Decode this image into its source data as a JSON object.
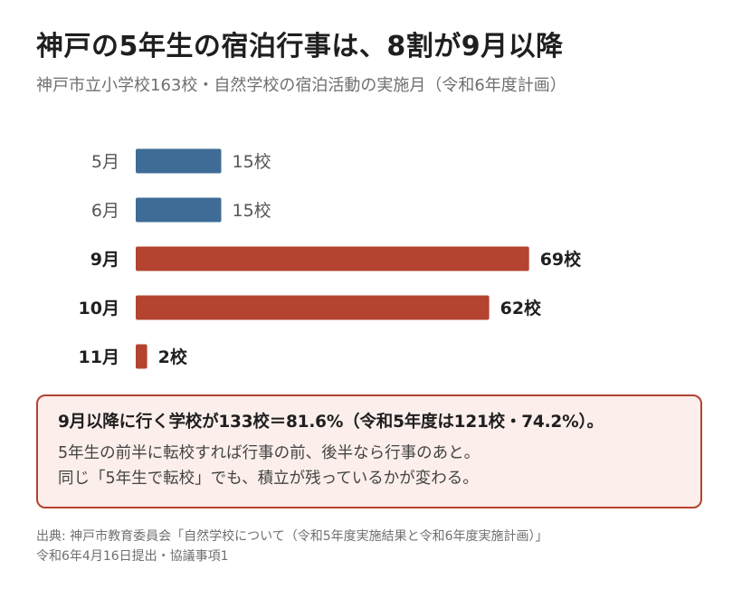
{
  "title": "神戸の5年生の宿泊行事は、8割が9月以降",
  "subtitle": "神戸市立小学校163校・自然学校の宿泊活動の実施月（令和6年度計画）",
  "chart_data": {
    "type": "bar",
    "orientation": "horizontal",
    "categories": [
      "5月",
      "6月",
      "9月",
      "10月",
      "11月"
    ],
    "values": [
      15,
      15,
      69,
      62,
      2
    ],
    "value_labels": [
      "15校",
      "15校",
      "69校",
      "62校",
      "2校"
    ],
    "highlighted": [
      false,
      false,
      true,
      true,
      true
    ],
    "colors": {
      "normal": "#3e6c96",
      "highlight": "#b4432f"
    },
    "title": "",
    "xlabel": "",
    "ylabel": "",
    "grid": false,
    "legend": "none"
  },
  "note": {
    "line1": "9月以降に行く学校が133校＝81.6%（令和5年度は121校・74.2%）。",
    "line2": "5年生の前半に転校すれば行事の前、後半なら行事のあと。",
    "line3": "同じ「5年生で転校」でも、積立が残っているかが変わる。"
  },
  "source": {
    "line1": "出典: 神戸市教育委員会「自然学校について（令和5年度実施結果と令和6年度実施計画）」",
    "line2": "令和6年4月16日提出・協議事項1"
  }
}
